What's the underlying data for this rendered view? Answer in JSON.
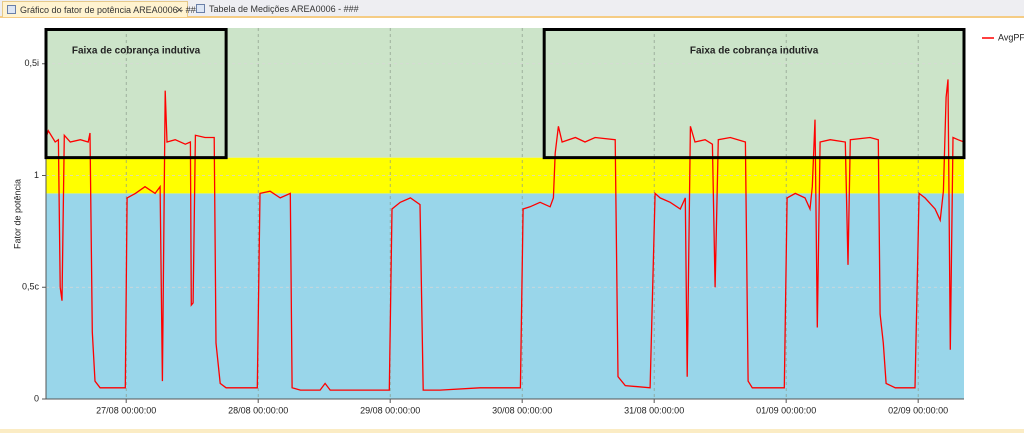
{
  "tabs": [
    {
      "title": "Gráfico do fator de potência AREA0006 - ###"
    },
    {
      "title": "Tabela de Medições AREA0006 - ###"
    }
  ],
  "chart_data": {
    "type": "line",
    "y_label": "Fator de potência",
    "x": [
      "26/08 09:25:00",
      "26/08 09:50:00",
      "26/08 11:05:00",
      "26/08 11:40:00",
      "26/08 12:00:00",
      "26/08 12:20:00",
      "26/08 12:45:00",
      "26/08 13:50:00",
      "26/08 15:40:00",
      "26/08 17:05:00",
      "26/08 17:25:00",
      "26/08 17:50:00",
      "26/08 18:20:00",
      "26/08 19:15:00",
      "26/08 21:05:00",
      "26/08 23:50:00",
      "27/08 00:10:00",
      "27/08 01:40:00",
      "27/08 03:25:00",
      "27/08 05:15:00",
      "27/08 06:10:00",
      "27/08 06:35:00",
      "27/08 07:05:00",
      "27/08 07:25:00",
      "27/08 08:55:00",
      "27/08 10:45:00",
      "27/08 11:40:00",
      "27/08 11:50:00",
      "27/08 12:10:00",
      "27/08 12:35:00",
      "27/08 14:20:00",
      "27/08 16:00:00",
      "27/08 16:20:00",
      "27/08 17:05:00",
      "27/08 18:10:00",
      "27/08 20:45:00",
      "27/08 23:50:00",
      "28/08 00:20:00",
      "28/08 02:10:00",
      "28/08 04:00:00",
      "28/08 05:50:00",
      "28/08 06:10:00",
      "28/08 07:40:00",
      "28/08 11:15:00",
      "28/08 12:10:00",
      "28/08 13:05:00",
      "28/08 16:45:00",
      "28/08 23:50:00",
      "29/08 00:20:00",
      "29/08 01:50:00",
      "29/08 03:40:00",
      "29/08 05:25:00",
      "29/08 06:00:00",
      "29/08 09:05:00",
      "29/08 16:20:00",
      "29/08 23:40:00",
      "30/08 00:10:00",
      "30/08 01:25:00",
      "30/08 03:15:00",
      "30/08 05:05:00",
      "30/08 05:40:00",
      "30/08 06:00:00",
      "30/08 06:35:00",
      "30/08 07:15:00",
      "30/08 09:40:00",
      "30/08 11:25:00",
      "30/08 13:15:00",
      "30/08 16:55:00",
      "30/08 17:25:00",
      "30/08 18:45:00",
      "30/08 23:15:00",
      "31/08 00:10:00",
      "31/08 01:05:00",
      "31/08 02:55:00",
      "31/08 04:45:00",
      "31/08 05:40:00",
      "31/08 06:00:00",
      "31/08 06:35:00",
      "31/08 07:25:00",
      "31/08 09:15:00",
      "31/08 10:35:00",
      "31/08 11:05:00",
      "31/08 11:40:00",
      "31/08 13:50:00",
      "31/08 16:35:00",
      "31/08 17:05:00",
      "31/08 17:50:00",
      "31/08 21:05:00",
      "31/08 23:40:00",
      "01/09 00:10:00",
      "01/09 01:40:00",
      "01/09 03:25:00",
      "01/09 04:20:00",
      "01/09 04:45:00",
      "01/09 05:15:00",
      "01/09 05:40:00",
      "01/09 06:10:00",
      "01/09 08:00:00",
      "01/09 10:45:00",
      "01/09 11:15:00",
      "01/09 11:40:00",
      "01/09 15:15:00",
      "01/09 16:45:00",
      "01/09 17:05:00",
      "01/09 17:40:00",
      "01/09 18:10:00",
      "01/09 19:50:00",
      "01/09 23:25:00",
      "02/09 00:10:00",
      "02/09 01:15:00",
      "02/09 03:05:00",
      "02/09 04:00:00",
      "02/09 04:35:00",
      "02/09 05:05:00",
      "02/09 05:25:00",
      "02/09 05:50:00",
      "02/09 06:20:00",
      "02/09 07:15:00",
      "02/09 08:20:00"
    ],
    "series": [
      {
        "name": "AvgPF",
        "color": "#ff0000",
        "values": [
          1.17,
          1.2,
          1.15,
          1.16,
          0.5,
          0.44,
          1.18,
          1.15,
          1.16,
          1.15,
          1.19,
          0.3,
          0.08,
          0.05,
          0.05,
          0.05,
          0.9,
          0.92,
          0.95,
          0.92,
          0.95,
          0.08,
          1.38,
          1.15,
          1.16,
          1.14,
          1.15,
          0.42,
          0.43,
          1.18,
          1.17,
          1.17,
          0.25,
          0.07,
          0.05,
          0.05,
          0.05,
          0.92,
          0.93,
          0.9,
          0.92,
          0.05,
          0.04,
          0.04,
          0.07,
          0.04,
          0.04,
          0.04,
          0.85,
          0.88,
          0.9,
          0.87,
          0.04,
          0.04,
          0.05,
          0.05,
          0.85,
          0.86,
          0.88,
          0.86,
          0.9,
          1.1,
          1.22,
          1.15,
          1.17,
          1.15,
          1.17,
          1.16,
          0.1,
          0.06,
          0.05,
          0.92,
          0.9,
          0.88,
          0.85,
          0.9,
          0.1,
          1.22,
          1.15,
          1.16,
          1.14,
          0.5,
          1.16,
          1.17,
          1.15,
          0.08,
          0.05,
          0.05,
          0.05,
          0.9,
          0.92,
          0.9,
          0.85,
          0.95,
          1.25,
          0.32,
          1.15,
          1.16,
          1.15,
          0.6,
          1.16,
          1.17,
          1.16,
          0.38,
          0.25,
          0.07,
          0.05,
          0.05,
          0.92,
          0.9,
          0.85,
          0.8,
          0.93,
          1.35,
          1.43,
          0.22,
          1.17,
          1.16,
          1.15
        ]
      }
    ],
    "xlim": [
      "26/08 09:25:00",
      "02/09 08:20:00"
    ],
    "xticks": [
      "27/08 00:00:00",
      "28/08 00:00:00",
      "29/08 00:00:00",
      "30/08 00:00:00",
      "31/08 00:00:00",
      "01/09 00:00:00",
      "02/09 00:00:00"
    ],
    "ylim": [
      0,
      1.66
    ],
    "yticks": [
      {
        "value": 0,
        "label": "0"
      },
      {
        "value": 0.5,
        "label": "0,5c"
      },
      {
        "value": 1,
        "label": "1"
      },
      {
        "value": 1.5,
        "label": "0,5i"
      }
    ],
    "grid": true,
    "legend": "top-right",
    "bands": [
      {
        "from": 0,
        "to": 0.92,
        "color": "#99d6ea"
      },
      {
        "from": 0.92,
        "to": 1.08,
        "color": "#ffff00"
      },
      {
        "from": 1.08,
        "to": 1.66,
        "color": "#cce4c9"
      }
    ],
    "annotations": [
      {
        "text": "Faixa de cobrança indutiva",
        "x": [
          "26/08 09:25:00",
          "27/08 18:10:00"
        ],
        "y": [
          1.08,
          1.66
        ]
      },
      {
        "text": "Faixa de cobrança indutiva",
        "x": [
          "30/08 04:00:00",
          "02/09 08:20:00"
        ],
        "y": [
          1.08,
          1.66
        ]
      }
    ]
  }
}
